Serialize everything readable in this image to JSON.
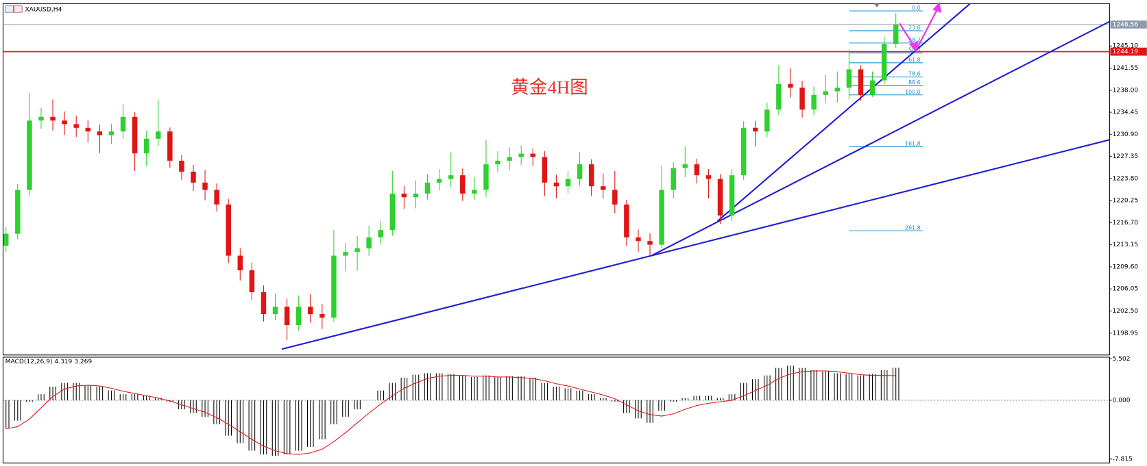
{
  "chart_data": [
    {
      "type": "candlestick",
      "title": "XAUUSD,H4",
      "annotation": "黄金4H图",
      "colors": {
        "up": "#2ed12e",
        "down": "#e01515"
      },
      "open": [
        1213.0,
        1214.92,
        1221.97,
        1233.12,
        1233.71,
        1233.12,
        1232.54,
        1231.95,
        1231.36,
        1230.77,
        1231.36,
        1233.71,
        1227.84,
        1230.19,
        1231.36,
        1226.66,
        1224.9,
        1223.14,
        1221.97,
        1219.62,
        1211.4,
        1209.05,
        1205.53,
        1202.0,
        1203.18,
        1200.24,
        1203.18,
        1202.0,
        1201.42,
        1211.4,
        1211.99,
        1212.57,
        1214.33,
        1215.51,
        1221.38,
        1220.79,
        1221.38,
        1223.14,
        1223.73,
        1224.32,
        1221.38,
        1221.97,
        1226.08,
        1226.66,
        1227.25,
        1227.8,
        1227.25,
        1223.14,
        1222.55,
        1223.73,
        1226.08,
        1222.55,
        1221.97,
        1219.62,
        1214.33,
        1213.75,
        1213.16,
        1221.97,
        1225.49,
        1226.08,
        1224.32,
        1223.73,
        1217.86,
        1224.32,
        1231.95,
        1231.36,
        1234.88,
        1238.99,
        1238.41,
        1234.88,
        1237.23,
        1237.82,
        1238.41,
        1241.34,
        1237.23,
        1239.58,
        1245.45
      ],
      "high": [
        1216.0,
        1222.9,
        1237.5,
        1235.2,
        1236.5,
        1234.6,
        1233.9,
        1233.2,
        1232.5,
        1232.6,
        1235.8,
        1234.5,
        1231.5,
        1236.5,
        1232.0,
        1227.6,
        1226.0,
        1225.2,
        1223.0,
        1220.5,
        1212.6,
        1210.3,
        1206.6,
        1205.3,
        1204.5,
        1205.0,
        1205.2,
        1203.6,
        1215.5,
        1213.5,
        1214.6,
        1216.2,
        1217.0,
        1225.0,
        1222.6,
        1223.5,
        1224.5,
        1225.3,
        1228.0,
        1225.4,
        1224.0,
        1230.0,
        1228.2,
        1228.8,
        1229.1,
        1228.6,
        1228.2,
        1224.4,
        1225.0,
        1228.0,
        1226.9,
        1224.6,
        1225.0,
        1220.4,
        1215.6,
        1215.0,
        1225.8,
        1226.4,
        1229.0,
        1227.0,
        1225.3,
        1224.5,
        1225.3,
        1233.0,
        1233.1,
        1236.0,
        1242.0,
        1241.5,
        1239.5,
        1238.6,
        1240.5,
        1241.0,
        1244.5,
        1242.0,
        1241.0,
        1246.6,
        1250.4
      ],
      "low": [
        1212.0,
        1214.0,
        1221.0,
        1231.8,
        1231.5,
        1230.8,
        1230.5,
        1229.6,
        1227.9,
        1229.4,
        1230.2,
        1225.0,
        1225.8,
        1229.0,
        1225.5,
        1223.6,
        1221.8,
        1220.3,
        1218.5,
        1210.2,
        1207.4,
        1204.2,
        1200.8,
        1201.0,
        1197.8,
        1199.3,
        1200.6,
        1199.6,
        1200.8,
        1208.9,
        1209.0,
        1211.4,
        1213.2,
        1214.6,
        1218.9,
        1219.0,
        1220.4,
        1221.9,
        1222.4,
        1220.2,
        1220.3,
        1220.8,
        1224.8,
        1225.2,
        1226.0,
        1225.8,
        1221.0,
        1220.6,
        1221.4,
        1222.6,
        1221.0,
        1220.6,
        1218.2,
        1212.9,
        1212.0,
        1211.4,
        1212.6,
        1220.6,
        1224.0,
        1223.0,
        1220.6,
        1216.5,
        1217.0,
        1223.6,
        1229.0,
        1230.4,
        1234.0,
        1236.8,
        1233.6,
        1234.0,
        1235.9,
        1236.0,
        1236.5,
        1236.3,
        1236.9,
        1239.0,
        1244.8
      ],
      "close": [
        1214.92,
        1221.97,
        1233.12,
        1233.71,
        1233.12,
        1232.54,
        1231.95,
        1231.36,
        1230.77,
        1231.36,
        1233.71,
        1227.84,
        1230.19,
        1231.36,
        1226.66,
        1224.9,
        1223.14,
        1221.97,
        1219.62,
        1211.4,
        1209.05,
        1205.53,
        1202.0,
        1203.18,
        1200.24,
        1203.18,
        1202.0,
        1201.42,
        1211.4,
        1211.99,
        1212.57,
        1214.33,
        1215.51,
        1221.38,
        1220.79,
        1221.38,
        1223.14,
        1223.73,
        1224.32,
        1221.38,
        1221.97,
        1226.08,
        1226.66,
        1227.25,
        1227.8,
        1227.25,
        1223.14,
        1222.55,
        1223.73,
        1226.08,
        1222.55,
        1221.97,
        1219.62,
        1214.33,
        1213.75,
        1213.16,
        1221.97,
        1225.49,
        1226.08,
        1224.32,
        1223.73,
        1217.86,
        1224.32,
        1231.95,
        1231.36,
        1234.88,
        1238.99,
        1238.41,
        1234.88,
        1237.23,
        1237.82,
        1238.41,
        1241.34,
        1237.23,
        1239.58,
        1245.45,
        1248.56
      ],
      "ylim": [
        1195.43,
        1251.91
      ],
      "yticks": [
        {
          "value": 1245.1,
          "label": "1245.10"
        },
        1241.55,
        {
          "value": 1238,
          "label": "1238.00"
        },
        1234.45,
        {
          "value": 1230.9,
          "label": "1230.90"
        },
        1227.35,
        {
          "value": 1223.8,
          "label": "1223.80"
        },
        1220.25,
        {
          "value": 1216.7,
          "label": "1216.70"
        },
        1213.15,
        {
          "value": 1209.6,
          "label": "1209.60"
        },
        1206.05,
        {
          "value": 1202.5,
          "label": "1202.50"
        },
        1198.95
      ],
      "price_lines": [
        {
          "value": 1248.56,
          "color": "#8c9cac"
        },
        {
          "value": 1244.19,
          "color": "#e01515"
        }
      ],
      "fibonacci": {
        "color": "#1e90d0",
        "start": 72,
        "end": 78.3,
        "levels": [
          {
            "label": "0.0",
            "price": 1250.74
          },
          {
            "label": "23.6",
            "price": 1247.55
          },
          {
            "label": "38.2",
            "price": 1245.58
          },
          {
            "label": "50.0",
            "price": 1243.99
          },
          {
            "label": "61.8",
            "price": 1242.4
          },
          {
            "label": "78.6",
            "price": 1240.13
          },
          {
            "label": "88.6",
            "price": 1238.78
          },
          {
            "label": "100.0",
            "price": 1237.24
          },
          {
            "label": "161.8",
            "price": 1228.9
          },
          {
            "label": "261.8",
            "price": 1215.4
          }
        ]
      },
      "trendlines": {
        "color": "#1f1fd6",
        "lines": [
          {
            "x": [
              23.56,
              55.13
            ],
            "y": [
              1196.37,
              1211.4
            ]
          },
          {
            "x": [
              55.13,
              94.19
            ],
            "y": [
              1211.4,
              1248.97
            ]
          },
          {
            "x": [
              60.75,
              77.63
            ],
            "y": [
              1216.92,
              1244.28
            ]
          }
        ]
      }
    },
    {
      "type": "macd",
      "label": "MACD(12,26,9) 4.319 3.269",
      "color": "#000000",
      "signal_color": "#e01515",
      "histogram": [
        -3.7,
        -2.7,
        -0.2,
        0.8,
        1.8,
        2.3,
        2.3,
        2.0,
        1.8,
        1.3,
        0.8,
        0.8,
        0.6,
        0.3,
        -0.2,
        -1.2,
        -1.7,
        -2.2,
        -3.2,
        -4.7,
        -5.7,
        -6.7,
        -7.2,
        -7.4,
        -7.2,
        -6.7,
        -6.2,
        -5.2,
        -3.2,
        -2.2,
        -1.2,
        0,
        1.3,
        2.3,
        3.0,
        3.4,
        3.6,
        3.6,
        3.5,
        3.3,
        3.1,
        3.3,
        3.1,
        3.2,
        3.2,
        3.0,
        2.3,
        1.8,
        1.6,
        1.3,
        0.8,
        0.3,
        -0.2,
        -1.7,
        -2.4,
        -3.0,
        -1.4,
        -0.2,
        0.3,
        0.6,
        0.6,
        0.3,
        0.8,
        2.3,
        2.8,
        3.3,
        4.3,
        4.6,
        4.3,
        4.0,
        3.8,
        3.6,
        3.5,
        3.3,
        3.5,
        4.0,
        4.319
      ],
      "signal": [
        -3.8,
        -3.5,
        -2.5,
        -1.0,
        0.5,
        1.5,
        1.9,
        2.0,
        1.9,
        1.6,
        1.2,
        0.9,
        0.6,
        0.3,
        -0.1,
        -0.6,
        -1.1,
        -1.6,
        -2.3,
        -3.2,
        -4.2,
        -5.2,
        -6.1,
        -6.7,
        -7.1,
        -7.2,
        -7.0,
        -6.5,
        -5.5,
        -4.3,
        -3.0,
        -1.7,
        -0.5,
        0.6,
        1.6,
        2.3,
        2.9,
        3.2,
        3.3,
        3.3,
        3.2,
        3.2,
        3.1,
        3.1,
        3.0,
        2.9,
        2.6,
        2.2,
        1.9,
        1.5,
        1.1,
        0.7,
        0.2,
        -0.6,
        -1.4,
        -1.9,
        -2.1,
        -1.8,
        -1.2,
        -0.7,
        -0.4,
        -0.2,
        0.0,
        0.6,
        1.3,
        2.0,
        2.9,
        3.5,
        3.8,
        3.9,
        3.9,
        3.8,
        3.6,
        3.4,
        3.3,
        3.3,
        3.269
      ],
      "ylim": [
        -8.35,
        5.73
      ],
      "yticks": [
        5.502,
        {
          "value": 0,
          "label": "0.000"
        },
        -7.815
      ]
    }
  ]
}
